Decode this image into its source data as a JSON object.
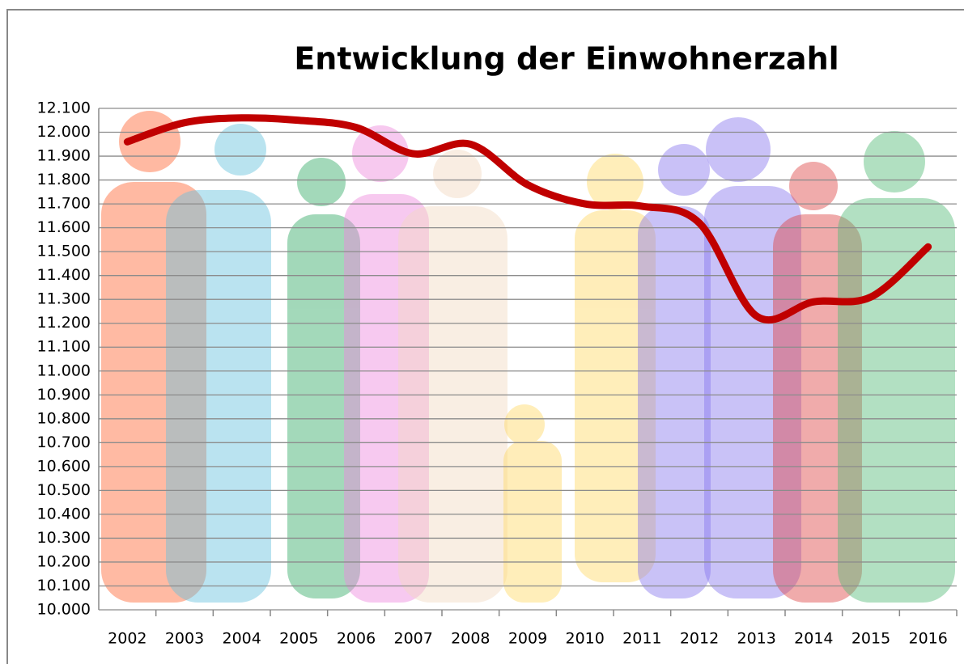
{
  "chart_data": {
    "type": "line",
    "title": "Entwicklung der Einwohnerzahl",
    "categories": [
      "2002",
      "2003",
      "2004",
      "2005",
      "2006",
      "2007",
      "2008",
      "2009",
      "2010",
      "2011",
      "2012",
      "2013",
      "2014",
      "2015",
      "2016"
    ],
    "values": [
      11960,
      12040,
      12060,
      12050,
      12020,
      11910,
      11950,
      11780,
      11700,
      11690,
      11620,
      11230,
      11290,
      11310,
      11520
    ],
    "color": "#c00000",
    "ylim": [
      10000,
      12100
    ],
    "yticks": [
      {
        "value": 10000,
        "label": "10.000"
      },
      {
        "value": 10100,
        "label": "10.100"
      },
      {
        "value": 10200,
        "label": "10.200"
      },
      {
        "value": 10300,
        "label": "10.300"
      },
      {
        "value": 10400,
        "label": "10.400"
      },
      {
        "value": 10500,
        "label": "10.500"
      },
      {
        "value": 10600,
        "label": "10.600"
      },
      {
        "value": 10700,
        "label": "10.700"
      },
      {
        "value": 10800,
        "label": "10.800"
      },
      {
        "value": 10900,
        "label": "10.900"
      },
      {
        "value": 11000,
        "label": "11.000"
      },
      {
        "value": 11100,
        "label": "11.100"
      },
      {
        "value": 11200,
        "label": "11.200"
      },
      {
        "value": 11300,
        "label": "11.300"
      },
      {
        "value": 11400,
        "label": "11.400"
      },
      {
        "value": 11500,
        "label": "11.500"
      },
      {
        "value": 11600,
        "label": "11.600"
      },
      {
        "value": 11700,
        "label": "11.700"
      },
      {
        "value": 11800,
        "label": "11.800"
      },
      {
        "value": 11900,
        "label": "11.900"
      },
      {
        "value": 12000,
        "label": "12.000"
      },
      {
        "value": 12100,
        "label": "12.100"
      }
    ],
    "grid": true
  }
}
